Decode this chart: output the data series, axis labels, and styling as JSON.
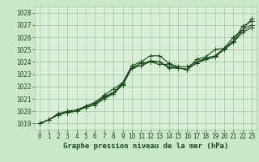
{
  "title": "Graphe pression niveau de la mer (hPa)",
  "background_color": "#c8e8c8",
  "plot_background": "#d8eed8",
  "grid_color": "#a0c8a0",
  "line_color": "#1a4a1a",
  "xlim": [
    -0.5,
    23.5
  ],
  "ylim": [
    1018.5,
    1028.5
  ],
  "yticks": [
    1019,
    1020,
    1021,
    1022,
    1023,
    1024,
    1025,
    1026,
    1027,
    1028
  ],
  "xticks": [
    0,
    1,
    2,
    3,
    4,
    5,
    6,
    7,
    8,
    9,
    10,
    11,
    12,
    13,
    14,
    15,
    16,
    17,
    18,
    19,
    20,
    21,
    22,
    23
  ],
  "series": [
    [
      1019.0,
      1019.3,
      1019.7,
      1019.9,
      1020.0,
      1020.4,
      1020.6,
      1021.1,
      1021.5,
      1022.3,
      1023.7,
      1024.0,
      1024.5,
      1024.5,
      1023.9,
      1023.6,
      1023.6,
      1024.0,
      1024.3,
      1024.5,
      1025.1,
      1025.7,
      1026.9,
      1027.3
    ],
    [
      1019.0,
      1019.3,
      1019.7,
      1019.9,
      1020.0,
      1020.4,
      1020.7,
      1021.2,
      1021.5,
      1022.2,
      1023.5,
      1023.7,
      1024.1,
      1024.0,
      1023.6,
      1023.5,
      1023.4,
      1023.9,
      1024.2,
      1024.4,
      1025.0,
      1025.6,
      1026.6,
      1027.0
    ],
    [
      1019.0,
      1019.3,
      1019.7,
      1019.9,
      1020.0,
      1020.3,
      1020.5,
      1021.0,
      1021.4,
      1022.1,
      1023.5,
      1023.7,
      1024.0,
      1024.0,
      1023.5,
      1023.5,
      1023.4,
      1023.9,
      1024.2,
      1024.4,
      1025.0,
      1025.6,
      1026.4,
      1026.8
    ],
    [
      1019.0,
      1019.3,
      1019.8,
      1020.0,
      1020.1,
      1020.4,
      1020.7,
      1021.3,
      1021.8,
      1022.3,
      1023.5,
      1023.9,
      1024.0,
      1023.8,
      1023.8,
      1023.5,
      1023.4,
      1024.2,
      1024.4,
      1025.0,
      1025.1,
      1026.0,
      1026.6,
      1027.5
    ]
  ],
  "marker": "+",
  "marker_size": 4,
  "line_width": 0.8,
  "tick_fontsize": 5.5,
  "label_fontsize": 6.5
}
